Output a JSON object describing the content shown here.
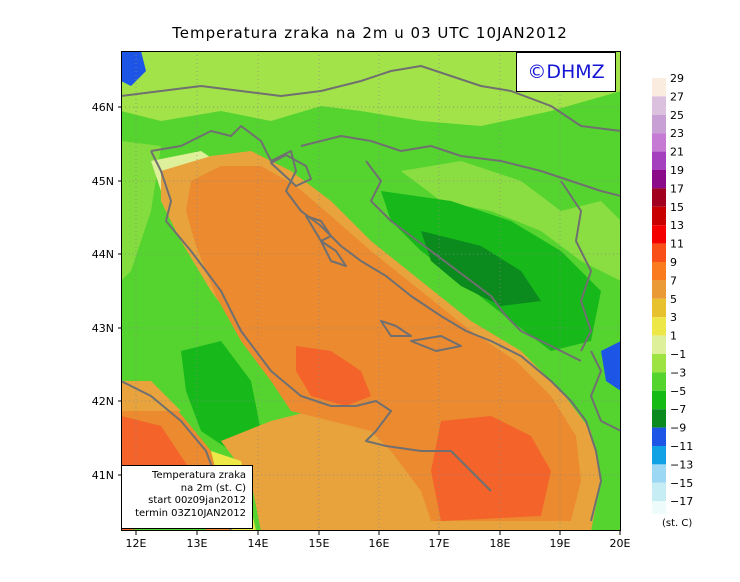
{
  "title": "Temperatura zraka na 2m u 03 UTC 10JAN2012",
  "logo": "©DHMZ",
  "info_box": {
    "line1": "Temperatura zraka",
    "line2": "na 2m (st. C)",
    "line3": "start 00z09jan2012",
    "line4": "termin 03Z10JAN2012"
  },
  "lat_labels": [
    "46N",
    "45N",
    "44N",
    "43N",
    "42N",
    "41N"
  ],
  "lon_labels": [
    "12E",
    "13E",
    "14E",
    "15E",
    "16E",
    "17E",
    "18E",
    "19E",
    "20E"
  ],
  "legend": {
    "unit": "(st. C)",
    "levels": [
      "29",
      "27",
      "25",
      "23",
      "21",
      "19",
      "17",
      "15",
      "13",
      "11",
      "9",
      "7",
      "5",
      "3",
      "1",
      "−1",
      "−3",
      "−5",
      "−7",
      "−9",
      "−11",
      "−13",
      "−15",
      "−17"
    ],
    "colors": [
      "#fbece0",
      "#dcc1df",
      "#c9a0d6",
      "#c57ad3",
      "#a43fbd",
      "#8a0a8a",
      "#a1001e",
      "#c80000",
      "#f50000",
      "#f9501a",
      "#fa7b1e",
      "#ea9a36",
      "#e8c12f",
      "#ede748",
      "#dff09a",
      "#9de342",
      "#55d42e",
      "#13bb14",
      "#0b8a1e",
      "#1d56e6",
      "#10a2e4",
      "#9cd8f4",
      "#c6edf4",
      "#eefbfb"
    ]
  },
  "colors": {
    "sea_warm": "#ec8a2f",
    "sea_hot": "#f4632a",
    "coast_band": "#e8a33d",
    "land_light": "#a3e34a",
    "land_mid": "#55d430",
    "land_dark": "#17b81a",
    "land_deep": "#0b8a1e",
    "cold": "#1d56e6",
    "border": "#707070"
  }
}
